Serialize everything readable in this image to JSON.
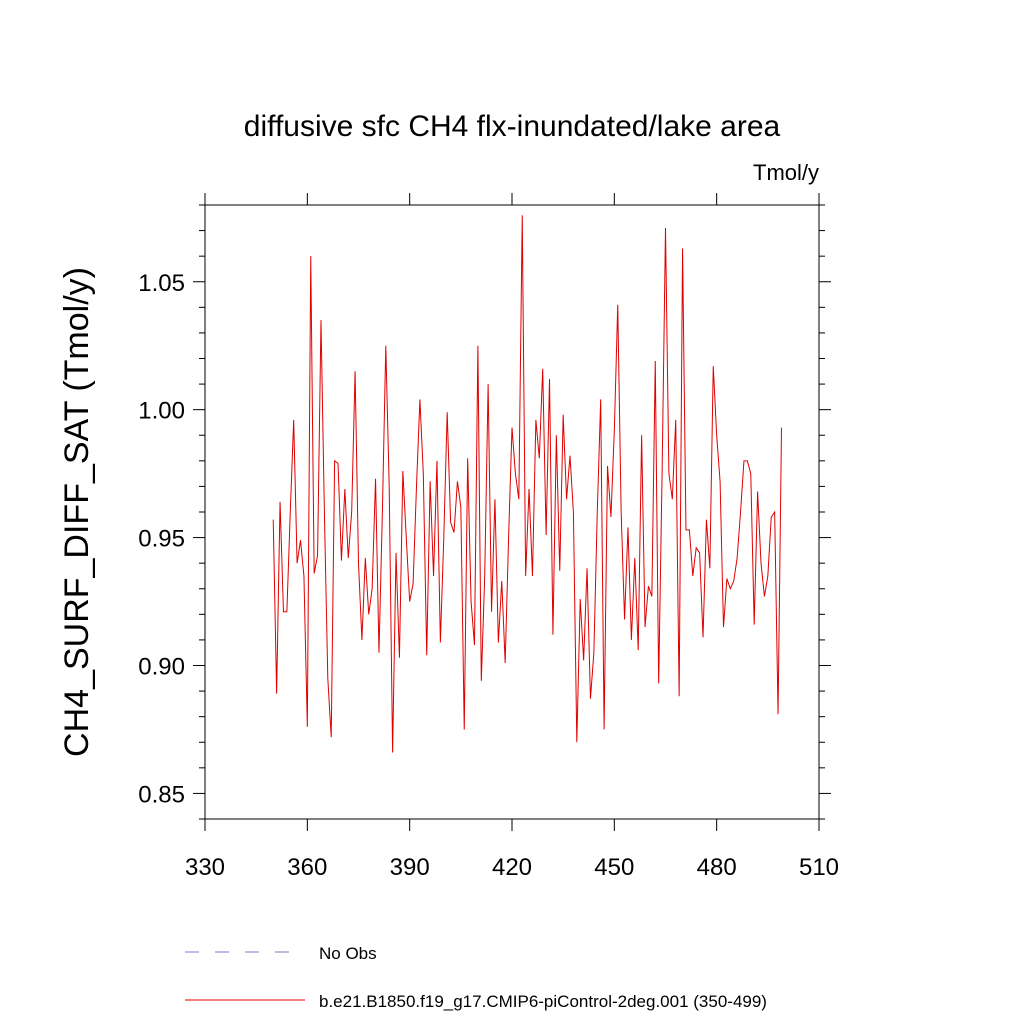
{
  "chart_data": {
    "type": "line",
    "title": "diffusive sfc CH4 flx-inundated/lake area",
    "units_label": "Tmol/y",
    "y_label": "CH4_SURF_DIFF_SAT  (Tmol/y)",
    "xlim": [
      330,
      510
    ],
    "xticks": [
      330,
      360,
      390,
      420,
      450,
      480,
      510
    ],
    "ylim": [
      0.84,
      1.08
    ],
    "yticks": [
      {
        "value": 0.85,
        "label": "0.85"
      },
      {
        "value": 0.9,
        "label": "0.90"
      },
      {
        "value": 0.95,
        "label": "0.95"
      },
      {
        "value": 1,
        "label": "1.00"
      },
      {
        "value": 1.05,
        "label": "1.05"
      }
    ],
    "yminor_ticks": [
      0.84,
      0.86,
      0.87,
      0.88,
      0.89,
      0.91,
      0.92,
      0.93,
      0.94,
      0.96,
      0.97,
      0.98,
      0.99,
      1.01,
      1.02,
      1.03,
      1.04,
      1.06,
      1.07,
      1.08
    ],
    "extra_legend": {
      "label": "No Obs",
      "color": "#7a7ac8",
      "style": "dashed"
    },
    "x": [
      350,
      351,
      352,
      353,
      354,
      355,
      356,
      357,
      358,
      359,
      360,
      361,
      362,
      363,
      364,
      365,
      366,
      367,
      368,
      369,
      370,
      371,
      372,
      373,
      374,
      375,
      376,
      377,
      378,
      379,
      380,
      381,
      382,
      383,
      384,
      385,
      386,
      387,
      388,
      389,
      390,
      391,
      392,
      393,
      394,
      395,
      396,
      397,
      398,
      399,
      400,
      401,
      402,
      403,
      404,
      405,
      406,
      407,
      408,
      409,
      410,
      411,
      412,
      413,
      414,
      415,
      416,
      417,
      418,
      419,
      420,
      421,
      422,
      423,
      424,
      425,
      426,
      427,
      428,
      429,
      430,
      431,
      432,
      433,
      434,
      435,
      436,
      437,
      438,
      439,
      440,
      441,
      442,
      443,
      444,
      445,
      446,
      447,
      448,
      449,
      450,
      451,
      452,
      453,
      454,
      455,
      456,
      457,
      458,
      459,
      460,
      461,
      462,
      463,
      464,
      465,
      466,
      467,
      468,
      469,
      470,
      471,
      472,
      473,
      474,
      475,
      476,
      477,
      478,
      479,
      480,
      481,
      482,
      483,
      484,
      485,
      486,
      487,
      488,
      489,
      490,
      491,
      492,
      493,
      494,
      495,
      496,
      497,
      498,
      499
    ],
    "series": [
      {
        "name": "b.e21.B1850.f19_g17.CMIP6-piControl-2deg.001 (350-499)",
        "color": "#e00000",
        "values": [
          0.957,
          0.889,
          0.964,
          0.921,
          0.921,
          0.96,
          0.996,
          0.94,
          0.949,
          0.935,
          0.876,
          1.06,
          0.936,
          0.943,
          1.035,
          0.96,
          0.895,
          0.872,
          0.98,
          0.979,
          0.941,
          0.969,
          0.942,
          0.96,
          1.015,
          0.94,
          0.91,
          0.942,
          0.92,
          0.93,
          0.973,
          0.905,
          0.96,
          1.025,
          0.97,
          0.866,
          0.944,
          0.903,
          0.976,
          0.95,
          0.925,
          0.932,
          0.97,
          1.004,
          0.975,
          0.904,
          0.972,
          0.935,
          0.98,
          0.909,
          0.95,
          0.999,
          0.956,
          0.952,
          0.972,
          0.962,
          0.875,
          0.981,
          0.925,
          0.908,
          1.025,
          0.894,
          0.935,
          1.01,
          0.921,
          0.965,
          0.909,
          0.933,
          0.901,
          0.95,
          0.993,
          0.975,
          0.965,
          1.076,
          0.935,
          0.969,
          0.935,
          0.996,
          0.981,
          1.016,
          0.951,
          1.012,
          0.912,
          0.99,
          0.937,
          0.998,
          0.965,
          0.982,
          0.96,
          0.87,
          0.926,
          0.902,
          0.938,
          0.887,
          0.905,
          0.96,
          1.004,
          0.875,
          0.978,
          0.958,
          0.992,
          1.041,
          0.96,
          0.918,
          0.954,
          0.91,
          0.942,
          0.906,
          0.99,
          0.915,
          0.931,
          0.927,
          1.019,
          0.893,
          0.975,
          1.071,
          0.975,
          0.965,
          0.996,
          0.888,
          1.063,
          0.953,
          0.953,
          0.935,
          0.946,
          0.944,
          0.911,
          0.957,
          0.938,
          1.017,
          0.99,
          0.972,
          0.915,
          0.934,
          0.93,
          0.933,
          0.942,
          0.96,
          0.98,
          0.98,
          0.975,
          0.916,
          0.968,
          0.94,
          0.927,
          0.935,
          0.958,
          0.96,
          0.881,
          0.993
        ]
      }
    ]
  }
}
